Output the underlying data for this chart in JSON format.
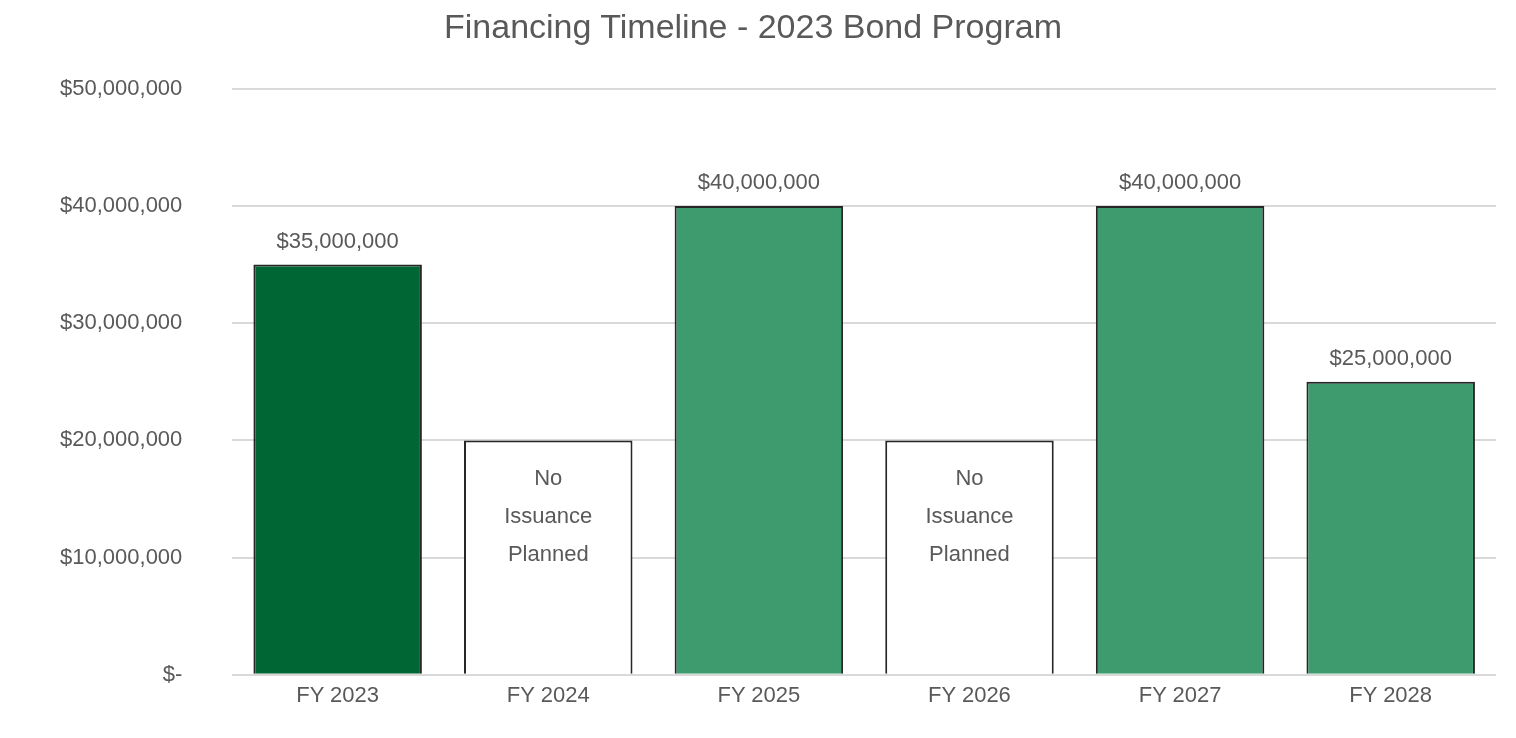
{
  "chart_data": {
    "type": "bar",
    "title": "Financing Timeline - 2023 Bond Program",
    "categories": [
      "FY 2023",
      "FY 2024",
      "FY 2025",
      "FY 2026",
      "FY 2027",
      "FY 2028"
    ],
    "values": [
      35000000,
      20000000,
      40000000,
      20000000,
      40000000,
      25000000
    ],
    "colors": [
      "#006633",
      "#ffffff",
      "#3d9b6e",
      "#ffffff",
      "#3d9b6e",
      "#3d9b6e"
    ],
    "value_labels": [
      "$35,000,000",
      "No Issuance Planned",
      "$40,000,000",
      "No Issuance Planned",
      "$40,000,000",
      "$25,000,000"
    ],
    "ylim": [
      0,
      50000000
    ],
    "yticks": [
      {
        "value": 0,
        "label": "$-"
      },
      {
        "value": 10000000,
        "label": "$10,000,000"
      },
      {
        "value": 20000000,
        "label": "$20,000,000"
      },
      {
        "value": 30000000,
        "label": "$30,000,000"
      },
      {
        "value": 40000000,
        "label": "$40,000,000"
      },
      {
        "value": 50000000,
        "label": "$50,000,000"
      }
    ],
    "grid": "y",
    "legend": false
  }
}
